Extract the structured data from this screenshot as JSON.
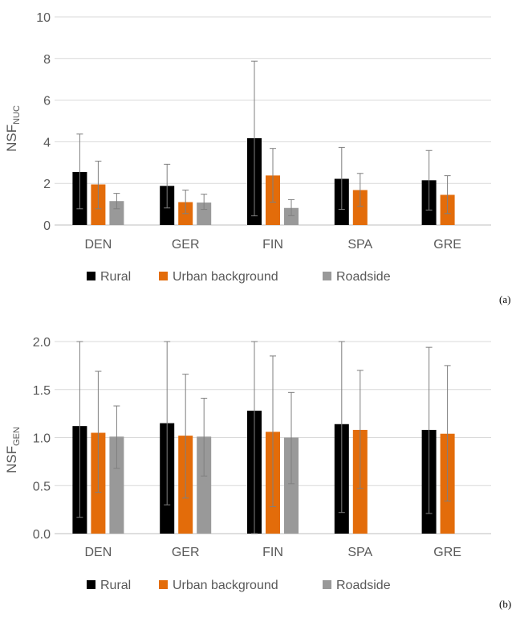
{
  "colors": {
    "rural": "#000000",
    "urban_background": "#e36c0a",
    "roadside": "#999999",
    "gridline": "#d9d9d9",
    "axis": "#bfbfbf",
    "error_bar": "#7f7f7f",
    "tick_text": "#595959"
  },
  "chart_data": [
    {
      "type": "bar",
      "panel_label": "(a)",
      "ylabel_main": "NSF",
      "ylabel_sub": "NUC",
      "categories": [
        "DEN",
        "GER",
        "FIN",
        "SPA",
        "GRE"
      ],
      "ylim": [
        0,
        10
      ],
      "yticks": [
        "0",
        "2",
        "4",
        "6",
        "8",
        "10"
      ],
      "grid": true,
      "legend_position": "bottom",
      "series": [
        {
          "name": "Rural",
          "values": [
            2.55,
            1.88,
            4.17,
            2.22,
            2.15
          ],
          "err_low": [
            0.78,
            0.82,
            0.44,
            0.75,
            0.72
          ],
          "err_high": [
            4.37,
            2.92,
            7.87,
            3.73,
            3.58
          ]
        },
        {
          "name": "Urban background",
          "values": [
            1.95,
            1.1,
            2.38,
            1.68,
            1.45
          ],
          "err_low": [
            0.78,
            0.55,
            1.1,
            0.9,
            0.55
          ],
          "err_high": [
            3.07,
            1.68,
            3.68,
            2.48,
            2.37
          ]
        },
        {
          "name": "Roadside",
          "values": [
            1.15,
            1.08,
            0.82,
            null,
            null
          ],
          "err_low": [
            0.78,
            0.75,
            0.45,
            null,
            null
          ],
          "err_high": [
            1.52,
            1.48,
            1.22,
            null,
            null
          ]
        }
      ]
    },
    {
      "type": "bar",
      "panel_label": "(b)",
      "ylabel_main": "NSF",
      "ylabel_sub": "GEN",
      "categories": [
        "DEN",
        "GER",
        "FIN",
        "SPA",
        "GRE"
      ],
      "ylim": [
        0,
        2
      ],
      "yticks": [
        "0.0",
        "0.5",
        "1.0",
        "1.5",
        "2.0"
      ],
      "grid": true,
      "legend_position": "bottom",
      "series": [
        {
          "name": "Rural",
          "values": [
            1.12,
            1.15,
            1.28,
            1.14,
            1.08
          ],
          "err_low": [
            0.17,
            0.3,
            0.0,
            0.22,
            0.21
          ],
          "err_high": [
            2.0,
            2.0,
            2.0,
            2.0,
            1.94
          ]
        },
        {
          "name": "Urban background",
          "values": [
            1.05,
            1.02,
            1.06,
            1.08,
            1.04
          ],
          "err_low": [
            0.43,
            0.37,
            0.28,
            0.47,
            0.34
          ],
          "err_high": [
            1.69,
            1.66,
            1.85,
            1.7,
            1.75
          ]
        },
        {
          "name": "Roadside",
          "values": [
            1.01,
            1.01,
            1.0,
            null,
            null
          ],
          "err_low": [
            0.68,
            0.6,
            0.52,
            null,
            null
          ],
          "err_high": [
            1.33,
            1.41,
            1.47,
            null,
            null
          ]
        }
      ]
    }
  ]
}
